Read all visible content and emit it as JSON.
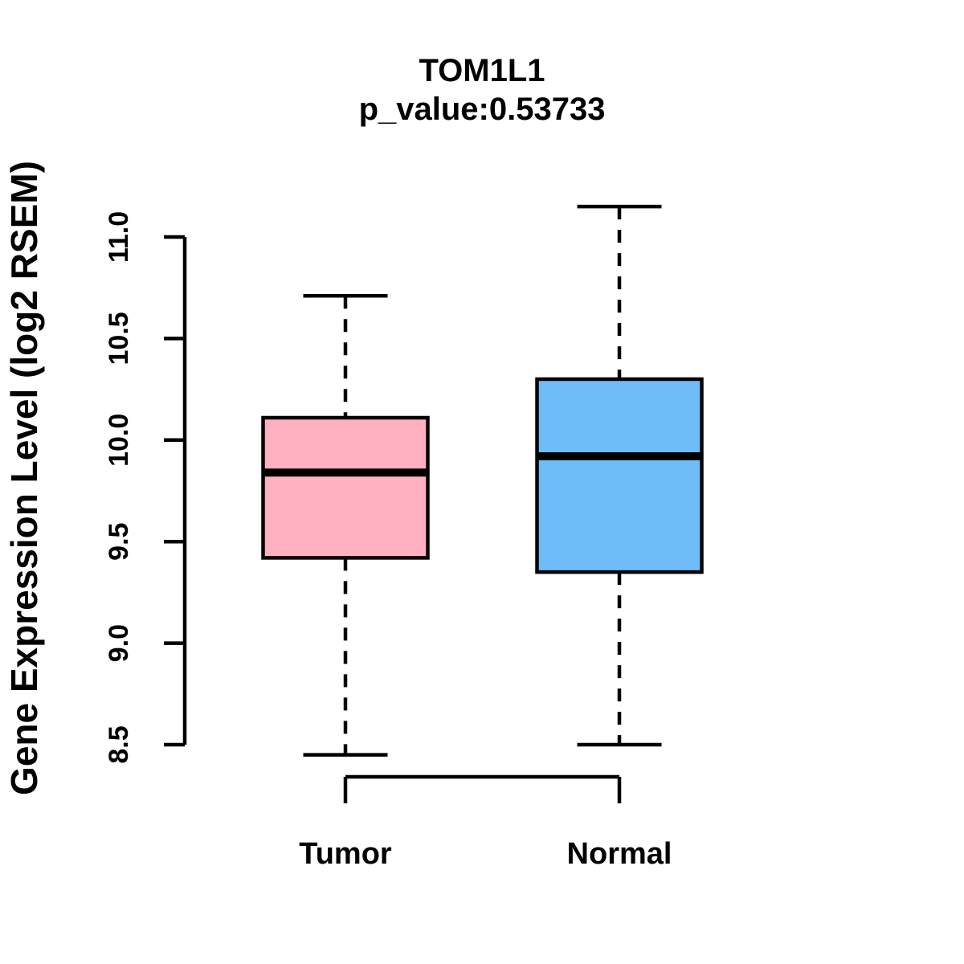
{
  "chart_data": {
    "type": "boxplot",
    "title": "TOM1L1",
    "subtitle": "p_value:0.53733",
    "ylabel": "Gene Expression Level (log2 RSEM)",
    "xlabel": "",
    "categories": [
      "Tumor",
      "Normal"
    ],
    "ylim": [
      8.5,
      11.0
    ],
    "yticks": [
      8.5,
      9.0,
      9.5,
      10.0,
      10.5,
      11.0
    ],
    "grid": false,
    "legend": "none",
    "line_color": "#000000",
    "background_color": "#ffffff",
    "groups": [
      {
        "name": "Tumor",
        "fill_color": "#FFB1C1",
        "lower_whisker": 8.45,
        "q1": 9.42,
        "median": 9.84,
        "q3": 10.11,
        "upper_whisker": 10.71
      },
      {
        "name": "Normal",
        "fill_color": "#6FBDF8",
        "lower_whisker": 8.5,
        "q1": 9.35,
        "median": 9.92,
        "q3": 10.3,
        "upper_whisker": 11.15
      }
    ]
  }
}
